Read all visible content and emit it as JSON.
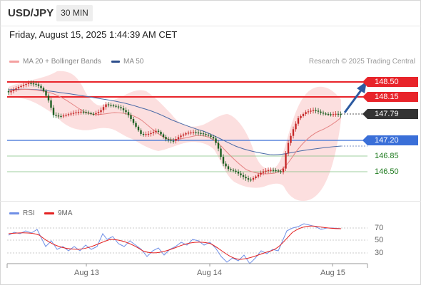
{
  "header": {
    "symbol": "USD/JPY",
    "timeframe": "30 MIN",
    "datetime": "Friday, August 15, 2025 1:44:39 AM CET"
  },
  "legend": {
    "ma20": "MA 20 + Bollinger Bands",
    "ma50": "MA 50",
    "research": "Research © 2025 Trading Central",
    "ma20_color": "#f08a8a",
    "ma50_color": "#2d4e8c"
  },
  "levels": {
    "resistance_2": "148.50",
    "resistance_1": "148.15",
    "last": "147.79",
    "pivot": "147.20",
    "support_1": "146.85",
    "support_2": "146.50",
    "colors": {
      "resistance": "#e8242a",
      "pivot": "#3a6fd8",
      "last": "#333333",
      "support": "#1d7a1d"
    }
  },
  "x_axis": [
    "Aug 13",
    "Aug 14",
    "Aug 15"
  ],
  "rsi": {
    "legend_rsi": "RSI",
    "legend_ma": "9MA",
    "rsi_color": "#6f8fe6",
    "ma_color": "#e32222",
    "ticks": [
      "70",
      "50",
      "30"
    ]
  }
}
